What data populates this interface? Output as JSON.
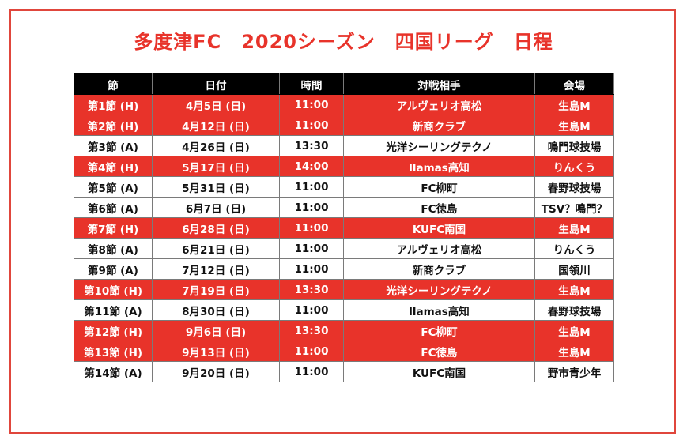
{
  "title": "多度津FC　2020シーズン　四国リーグ　日程",
  "colors": {
    "home_row": "#e8332a",
    "header": "#000000",
    "border": "#e0463c"
  },
  "headers": [
    "節",
    "日付",
    "時間",
    "対戦相手",
    "会場"
  ],
  "rows": [
    {
      "type": "home",
      "cells": [
        "第1節 (H)",
        "4月5日 (日)",
        "11:00",
        "アルヴェリオ高松",
        "生島M"
      ]
    },
    {
      "type": "home",
      "cells": [
        "第2節 (H)",
        "4月12日 (日)",
        "11:00",
        "新商クラブ",
        "生島M"
      ]
    },
    {
      "type": "away",
      "cells": [
        "第3節 (A)",
        "4月26日 (日)",
        "13:30",
        "光洋シーリングテクノ",
        "鳴門球技場"
      ]
    },
    {
      "type": "home",
      "cells": [
        "第4節 (H)",
        "5月17日 (日)",
        "14:00",
        "llamas高知",
        "りんくう"
      ]
    },
    {
      "type": "away",
      "cells": [
        "第5節 (A)",
        "5月31日 (日)",
        "11:00",
        "FC柳町",
        "春野球技場"
      ]
    },
    {
      "type": "away",
      "cells": [
        "第6節 (A)",
        "6月7日 (日)",
        "11:00",
        "FC徳島",
        "TSV？鳴門？"
      ]
    },
    {
      "type": "home",
      "cells": [
        "第7節 (H)",
        "6月28日 (日)",
        "11:00",
        "KUFC南国",
        "生島M"
      ]
    },
    {
      "type": "away",
      "cells": [
        "第8節 (A)",
        "6月21日 (日)",
        "11:00",
        "アルヴェリオ高松",
        "りんくう"
      ]
    },
    {
      "type": "away",
      "cells": [
        "第9節 (A)",
        "7月12日 (日)",
        "11:00",
        "新商クラブ",
        "国領川"
      ]
    },
    {
      "type": "home",
      "cells": [
        "第10節 (H)",
        "7月19日 (日)",
        "13:30",
        "光洋シーリングテクノ",
        "生島M"
      ]
    },
    {
      "type": "away",
      "cells": [
        "第11節 (A)",
        "8月30日 (日)",
        "11:00",
        "llamas高知",
        "春野球技場"
      ]
    },
    {
      "type": "home",
      "cells": [
        "第12節 (H)",
        "9月6日 (日)",
        "13:30",
        "FC柳町",
        "生島M"
      ]
    },
    {
      "type": "home",
      "cells": [
        "第13節 (H)",
        "9月13日 (日)",
        "11:00",
        "FC徳島",
        "生島M"
      ]
    },
    {
      "type": "away",
      "cells": [
        "第14節 (A)",
        "9月20日 (日)",
        "11:00",
        "KUFC南国",
        "野市青少年"
      ]
    }
  ]
}
